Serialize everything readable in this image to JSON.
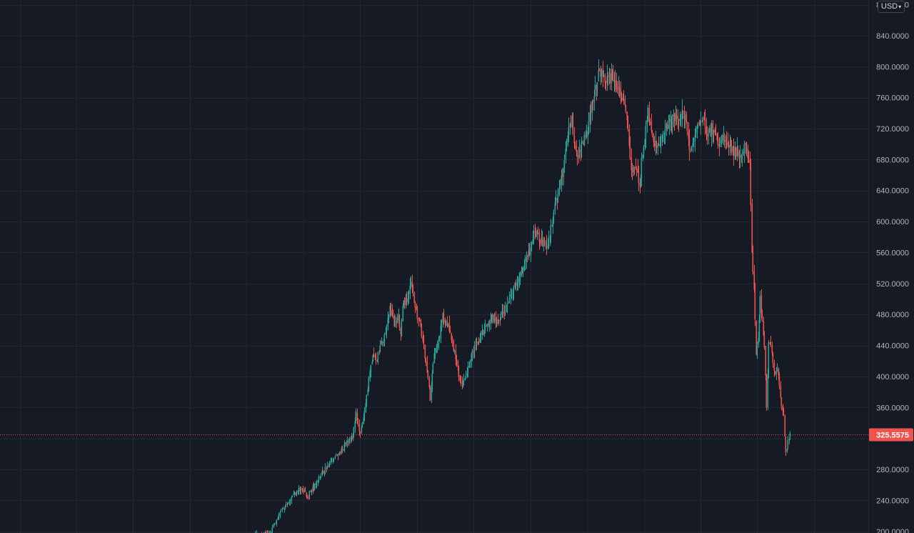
{
  "currency_selector": {
    "label": "USD",
    "icon": "chevron-down-icon"
  },
  "last_price": {
    "label": "325.5575",
    "value": 325.5575
  },
  "colors": {
    "background": "#161a25",
    "grid": "#232733",
    "up": "#26a69a",
    "down": "#ef5350",
    "axis_text": "#b2b5be"
  },
  "chart_data": {
    "type": "candlestick",
    "grid": true,
    "price_axis": "right",
    "ylim": [
      198,
      886
    ],
    "y_ticks": [
      "200.0000",
      "240.0000",
      "280.0000",
      "320.0000",
      "360.0000",
      "400.0000",
      "440.0000",
      "480.0000",
      "520.0000",
      "560.0000",
      "600.0000",
      "640.0000",
      "680.0000",
      "720.0000",
      "760.0000",
      "800.0000",
      "840.0000",
      "880.0000"
    ],
    "close_path_anchors": [
      [
        0,
        195
      ],
      [
        8,
        197
      ],
      [
        16,
        200
      ],
      [
        22,
        220
      ],
      [
        30,
        235
      ],
      [
        38,
        248
      ],
      [
        44,
        255
      ],
      [
        50,
        245
      ],
      [
        56,
        258
      ],
      [
        62,
        272
      ],
      [
        70,
        285
      ],
      [
        78,
        298
      ],
      [
        86,
        312
      ],
      [
        92,
        320
      ],
      [
        96,
        352
      ],
      [
        100,
        325
      ],
      [
        104,
        352
      ],
      [
        108,
        395
      ],
      [
        112,
        432
      ],
      [
        116,
        422
      ],
      [
        120,
        442
      ],
      [
        124,
        455
      ],
      [
        128,
        488
      ],
      [
        132,
        468
      ],
      [
        136,
        478
      ],
      [
        138,
        452
      ],
      [
        140,
        492
      ],
      [
        144,
        500
      ],
      [
        148,
        520
      ],
      [
        152,
        488
      ],
      [
        156,
        468
      ],
      [
        160,
        438
      ],
      [
        164,
        395
      ],
      [
        166,
        372
      ],
      [
        170,
        428
      ],
      [
        174,
        446
      ],
      [
        178,
        478
      ],
      [
        182,
        470
      ],
      [
        186,
        448
      ],
      [
        190,
        425
      ],
      [
        194,
        395
      ],
      [
        198,
        392
      ],
      [
        202,
        412
      ],
      [
        206,
        432
      ],
      [
        210,
        443
      ],
      [
        214,
        452
      ],
      [
        218,
        462
      ],
      [
        222,
        470
      ],
      [
        226,
        478
      ],
      [
        230,
        472
      ],
      [
        234,
        482
      ],
      [
        238,
        490
      ],
      [
        242,
        508
      ],
      [
        246,
        518
      ],
      [
        250,
        526
      ],
      [
        254,
        540
      ],
      [
        258,
        552
      ],
      [
        262,
        570
      ],
      [
        264,
        588
      ],
      [
        268,
        582
      ],
      [
        272,
        572
      ],
      [
        276,
        568
      ],
      [
        280,
        590
      ],
      [
        284,
        622
      ],
      [
        288,
        642
      ],
      [
        292,
        668
      ],
      [
        296,
        712
      ],
      [
        300,
        732
      ],
      [
        302,
        702
      ],
      [
        306,
        688
      ],
      [
        310,
        700
      ],
      [
        314,
        718
      ],
      [
        318,
        742
      ],
      [
        322,
        772
      ],
      [
        326,
        795
      ],
      [
        330,
        785
      ],
      [
        334,
        782
      ],
      [
        338,
        790
      ],
      [
        342,
        778
      ],
      [
        346,
        762
      ],
      [
        350,
        752
      ],
      [
        354,
        702
      ],
      [
        356,
        662
      ],
      [
        360,
        668
      ],
      [
        364,
        650
      ],
      [
        368,
        702
      ],
      [
        372,
        740
      ],
      [
        376,
        712
      ],
      [
        380,
        692
      ],
      [
        384,
        708
      ],
      [
        388,
        718
      ],
      [
        392,
        725
      ],
      [
        396,
        738
      ],
      [
        400,
        735
      ],
      [
        404,
        740
      ],
      [
        408,
        728
      ],
      [
        412,
        690
      ],
      [
        416,
        712
      ],
      [
        420,
        730
      ],
      [
        424,
        732
      ],
      [
        428,
        712
      ],
      [
        432,
        720
      ],
      [
        436,
        708
      ],
      [
        440,
        702
      ],
      [
        444,
        708
      ],
      [
        448,
        700
      ],
      [
        452,
        690
      ],
      [
        456,
        690
      ],
      [
        460,
        682
      ],
      [
        464,
        700
      ],
      [
        468,
        672
      ],
      [
        470,
        560
      ],
      [
        472,
        512
      ],
      [
        474,
        430
      ],
      [
        476,
        450
      ],
      [
        478,
        500
      ],
      [
        480,
        470
      ],
      [
        482,
        442
      ],
      [
        484,
        360
      ],
      [
        486,
        440
      ],
      [
        488,
        440
      ],
      [
        490,
        420
      ],
      [
        492,
        402
      ],
      [
        494,
        412
      ],
      [
        496,
        388
      ],
      [
        498,
        360
      ],
      [
        500,
        348
      ],
      [
        502,
        300
      ],
      [
        504,
        318
      ],
      [
        506,
        326
      ]
    ]
  }
}
